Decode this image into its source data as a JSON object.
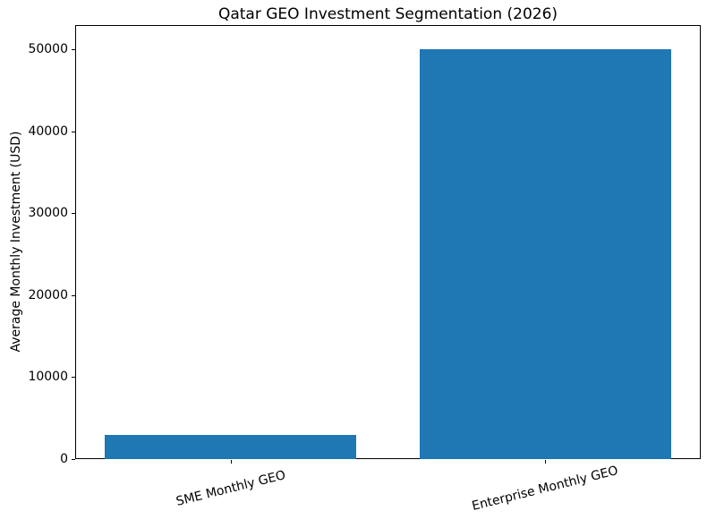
{
  "chart_data": {
    "type": "bar",
    "title": "Qatar GEO Investment Segmentation (2026)",
    "xlabel": "",
    "ylabel": "Average Monthly Investment (USD)",
    "categories": [
      "SME Monthly GEO",
      "Enterprise Monthly GEO"
    ],
    "values": [
      3000,
      50000
    ],
    "yticks": [
      0,
      10000,
      20000,
      30000,
      40000,
      50000
    ],
    "ylim": [
      0,
      53000
    ],
    "bar_color": "#1f77b4",
    "grid": false,
    "legend_position": "none",
    "x_tick_rotation_deg": 14
  }
}
